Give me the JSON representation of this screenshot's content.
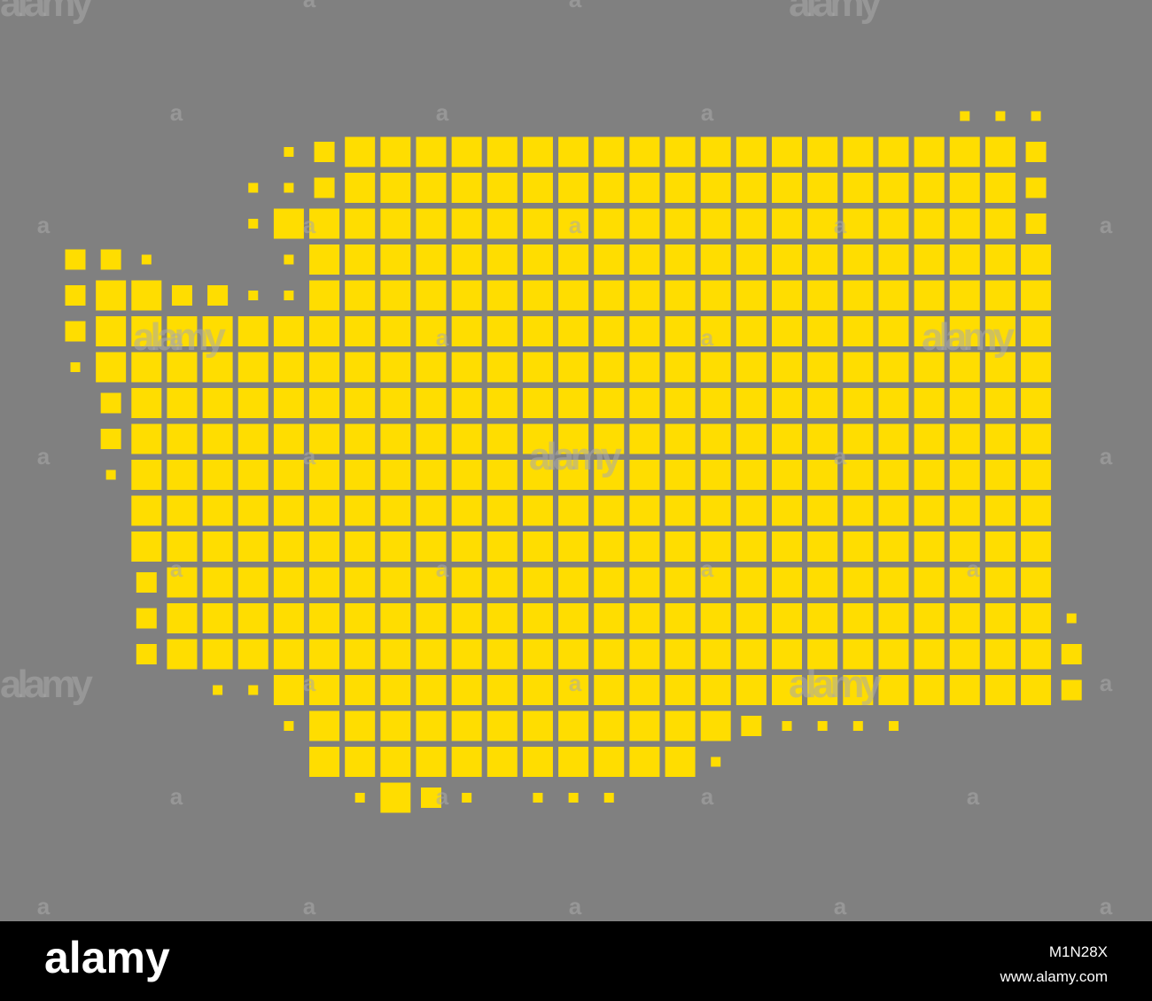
{
  "watermark": {
    "text": "alamy",
    "mark": "a"
  },
  "footer": {
    "logo": "alamy",
    "image_id": "M1N28X",
    "url": "www.alamy.com"
  }
}
